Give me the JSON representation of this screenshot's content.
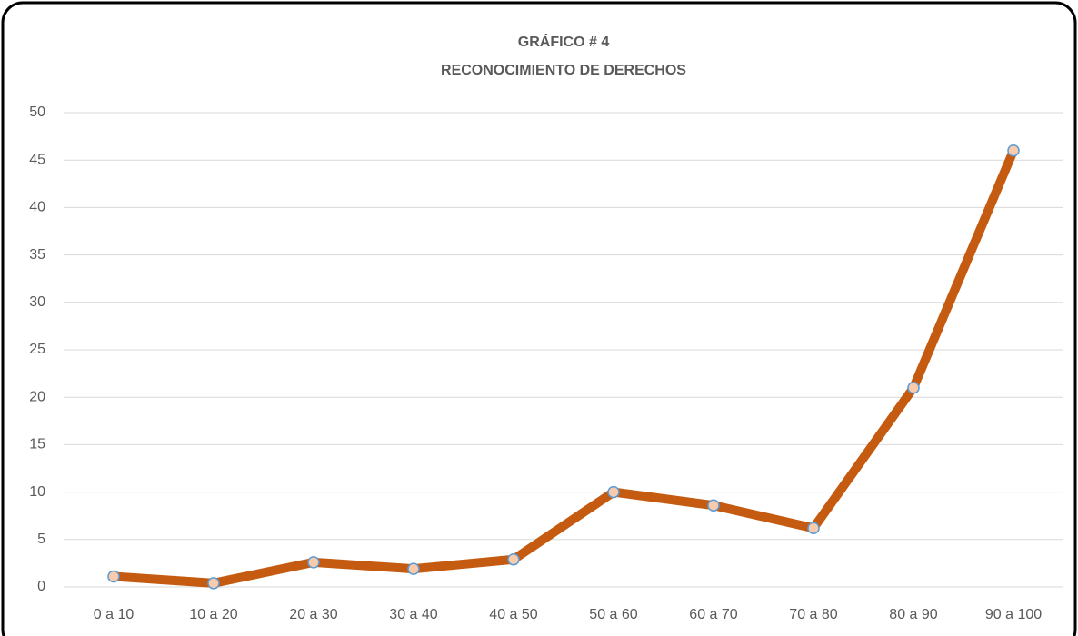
{
  "chart_data": {
    "type": "line",
    "title": "GRÁFICO # 4",
    "subtitle": "RECONOCIMIENTO DE DERECHOS",
    "categories": [
      "0 a 10",
      "10 a 20",
      "20 a 30",
      "30 a 40",
      "40 a 50",
      "50 a 60",
      "60 a 70",
      "70 a 80",
      "80 a 90",
      "90 a 100"
    ],
    "series": [
      {
        "name": "RECONOCIMIENTO DE DERECHOS",
        "color": "#c55a11",
        "values": [
          1.1,
          0.4,
          2.6,
          1.9,
          2.9,
          10,
          8.6,
          6.2,
          21,
          46
        ]
      }
    ],
    "ylim": [
      0,
      50
    ],
    "yticks": [
      0,
      5,
      10,
      15,
      20,
      25,
      30,
      35,
      40,
      45,
      50
    ],
    "grid": true
  }
}
